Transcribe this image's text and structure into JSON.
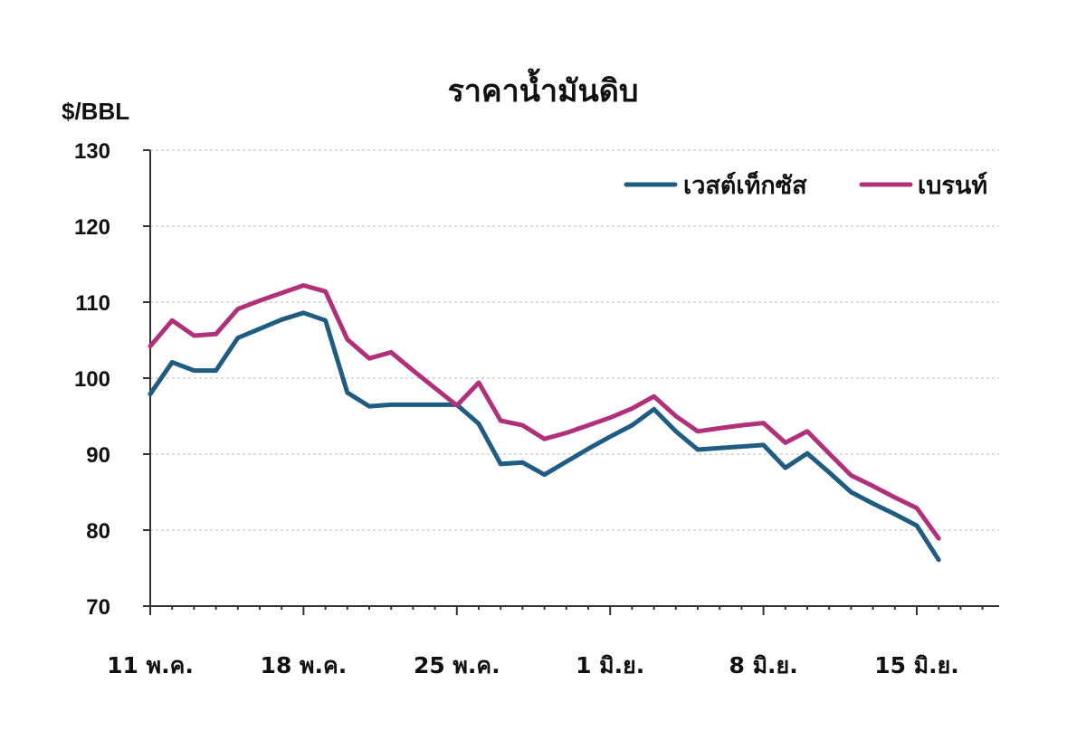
{
  "chart_data": {
    "type": "line",
    "title": "ราคาน้ำมันดิบ",
    "ylabel": "$/BBL",
    "ylim": [
      70,
      130
    ],
    "yticks": [
      70,
      80,
      90,
      100,
      110,
      120,
      130
    ],
    "grid": true,
    "legend_position": "top-right",
    "x_tick_labels": [
      "11 พ.ค.",
      "18 พ.ค.",
      "25 พ.ค.",
      "1 มิ.ย.",
      "8 มิ.ย.",
      "15 มิ.ย."
    ],
    "x_tick_positions": [
      0,
      7,
      14,
      21,
      28,
      35
    ],
    "x_max": 39,
    "series": [
      {
        "name": "เวสต์เท็กซัส",
        "color": "#1f5c82",
        "x": [
          0,
          1,
          2,
          3,
          4,
          5,
          6,
          7,
          8,
          9,
          10,
          11,
          12,
          13,
          14,
          15,
          16,
          17,
          18,
          19,
          20,
          21,
          22,
          23,
          24,
          25,
          26,
          27,
          28,
          29,
          30,
          31,
          32,
          33,
          34,
          35,
          36
        ],
        "values": [
          97.9,
          102.1,
          101.0,
          101.0,
          105.3,
          106.5,
          107.7,
          108.6,
          107.6,
          98.1,
          96.3,
          96.5,
          96.5,
          96.5,
          96.5,
          94.0,
          88.7,
          88.9,
          87.3,
          89.0,
          90.7,
          92.3,
          93.8,
          95.9,
          93.0,
          90.6,
          90.8,
          91.0,
          91.2,
          88.2,
          90.1,
          87.6,
          85.0,
          83.5,
          82.1,
          80.6,
          76.1
        ]
      },
      {
        "name": "เบรนท์",
        "color": "#b0307a",
        "x": [
          0,
          1,
          2,
          3,
          4,
          5,
          6,
          7,
          8,
          9,
          10,
          11,
          12,
          13,
          14,
          15,
          16,
          17,
          18,
          19,
          20,
          21,
          22,
          23,
          24,
          25,
          26,
          27,
          28,
          29,
          30,
          31,
          32,
          33,
          34,
          35,
          36
        ],
        "values": [
          104.2,
          107.6,
          105.6,
          105.8,
          109.1,
          110.2,
          111.2,
          112.2,
          111.4,
          105.1,
          102.6,
          103.4,
          101.0,
          98.7,
          96.4,
          99.4,
          94.4,
          93.8,
          92.0,
          92.8,
          93.8,
          94.8,
          96.0,
          97.6,
          95.0,
          93.0,
          93.4,
          93.8,
          94.1,
          91.5,
          93.0,
          90.1,
          87.2,
          85.8,
          84.3,
          82.9,
          78.9
        ]
      }
    ]
  }
}
